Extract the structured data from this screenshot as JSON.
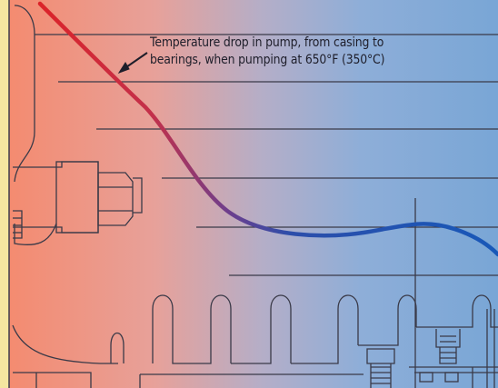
{
  "annotation": {
    "line1": "Temperature drop in pump, from casing to",
    "line2": "bearings, when pumping at 650°F (350°C)"
  },
  "colors": {
    "hot": "#f28d74",
    "cool": "#7aa6d6",
    "curve_hot": "#d8232a",
    "curve_cool": "#1a57b6",
    "line_art": "#3c3c4a",
    "left_strip": "#f4e6a0"
  },
  "icons": [
    "arrow-pointer-icon"
  ]
}
